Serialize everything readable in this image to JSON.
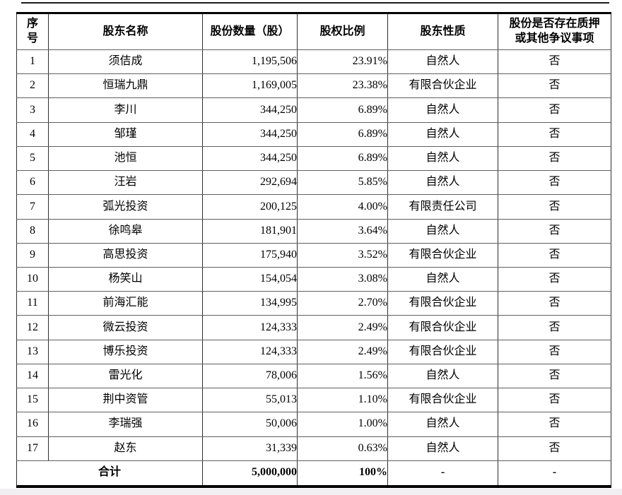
{
  "page": {
    "background": "#ffffff",
    "footer_strip_color": "#f1eff1",
    "rule_color": "#1c1c1c"
  },
  "table": {
    "columns": [
      {
        "key": "no",
        "label": "序\n号"
      },
      {
        "key": "name",
        "label": "股东名称"
      },
      {
        "key": "shares",
        "label": "股份数量（股）"
      },
      {
        "key": "ratio",
        "label": "股权比例"
      },
      {
        "key": "nature",
        "label": "股东性质"
      },
      {
        "key": "pledge",
        "label": "股份是否存在质押\n或其他争议事项"
      }
    ],
    "rows": [
      {
        "no": "1",
        "name": "须佶成",
        "shares": "1,195,506",
        "ratio": "23.91%",
        "nature": "自然人",
        "pledge": "否"
      },
      {
        "no": "2",
        "name": "恒瑞九鼎",
        "shares": "1,169,005",
        "ratio": "23.38%",
        "nature": "有限合伙企业",
        "pledge": "否"
      },
      {
        "no": "3",
        "name": "李川",
        "shares": "344,250",
        "ratio": "6.89%",
        "nature": "自然人",
        "pledge": "否"
      },
      {
        "no": "4",
        "name": "邹瑾",
        "shares": "344,250",
        "ratio": "6.89%",
        "nature": "自然人",
        "pledge": "否"
      },
      {
        "no": "5",
        "name": "池恒",
        "shares": "344,250",
        "ratio": "6.89%",
        "nature": "自然人",
        "pledge": "否"
      },
      {
        "no": "6",
        "name": "汪岩",
        "shares": "292,694",
        "ratio": "5.85%",
        "nature": "自然人",
        "pledge": "否"
      },
      {
        "no": "7",
        "name": "弧光投资",
        "shares": "200,125",
        "ratio": "4.00%",
        "nature": "有限责任公司",
        "pledge": "否"
      },
      {
        "no": "8",
        "name": "徐鸣皋",
        "shares": "181,901",
        "ratio": "3.64%",
        "nature": "自然人",
        "pledge": "否"
      },
      {
        "no": "9",
        "name": "高思投资",
        "shares": "175,940",
        "ratio": "3.52%",
        "nature": "有限合伙企业",
        "pledge": "否"
      },
      {
        "no": "10",
        "name": "杨笑山",
        "shares": "154,054",
        "ratio": "3.08%",
        "nature": "自然人",
        "pledge": "否"
      },
      {
        "no": "11",
        "name": "前海汇能",
        "shares": "134,995",
        "ratio": "2.70%",
        "nature": "有限合伙企业",
        "pledge": "否"
      },
      {
        "no": "12",
        "name": "微云投资",
        "shares": "124,333",
        "ratio": "2.49%",
        "nature": "有限合伙企业",
        "pledge": "否"
      },
      {
        "no": "13",
        "name": "博乐投资",
        "shares": "124,333",
        "ratio": "2.49%",
        "nature": "有限合伙企业",
        "pledge": "否"
      },
      {
        "no": "14",
        "name": "雷光化",
        "shares": "78,006",
        "ratio": "1.56%",
        "nature": "自然人",
        "pledge": "否"
      },
      {
        "no": "15",
        "name": "荆中资管",
        "shares": "55,013",
        "ratio": "1.10%",
        "nature": "有限合伙企业",
        "pledge": "否"
      },
      {
        "no": "16",
        "name": "李瑞强",
        "shares": "50,006",
        "ratio": "1.00%",
        "nature": "自然人",
        "pledge": "否"
      },
      {
        "no": "17",
        "name": "赵东",
        "shares": "31,339",
        "ratio": "0.63%",
        "nature": "自然人",
        "pledge": "否"
      }
    ],
    "total": {
      "label": "合计",
      "shares": "5,000,000",
      "ratio": "100%",
      "nature": "-",
      "pledge": "-"
    }
  }
}
